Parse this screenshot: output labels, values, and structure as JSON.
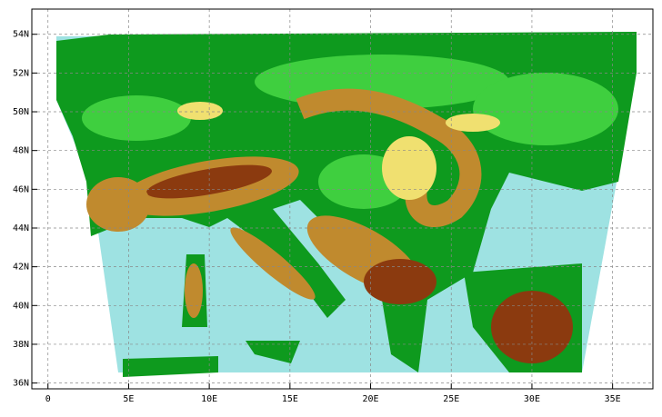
{
  "chart_data": {
    "type": "map",
    "xlim": [
      -1,
      37.5
    ],
    "ylim": [
      35.7,
      55.3
    ],
    "xticks": [
      0,
      {
        "value": 5,
        "label": "5E"
      },
      {
        "value": 10,
        "label": "10E"
      },
      {
        "value": 15,
        "label": "15E"
      },
      {
        "value": 20,
        "label": "20E"
      },
      {
        "value": 25,
        "label": "25E"
      },
      {
        "value": 30,
        "label": "30E"
      },
      {
        "value": 35,
        "label": "35E"
      }
    ],
    "yticks": [
      {
        "value": 36,
        "label": "36N"
      },
      {
        "value": 38,
        "label": "38N"
      },
      {
        "value": 40,
        "label": "40N"
      },
      {
        "value": 42,
        "label": "42N"
      },
      {
        "value": 44,
        "label": "44N"
      },
      {
        "value": 46,
        "label": "46N"
      },
      {
        "value": 48,
        "label": "48N"
      },
      {
        "value": 50,
        "label": "50N"
      },
      {
        "value": 52,
        "label": "52N"
      },
      {
        "value": 54,
        "label": "54N"
      }
    ],
    "grid": true
  }
}
